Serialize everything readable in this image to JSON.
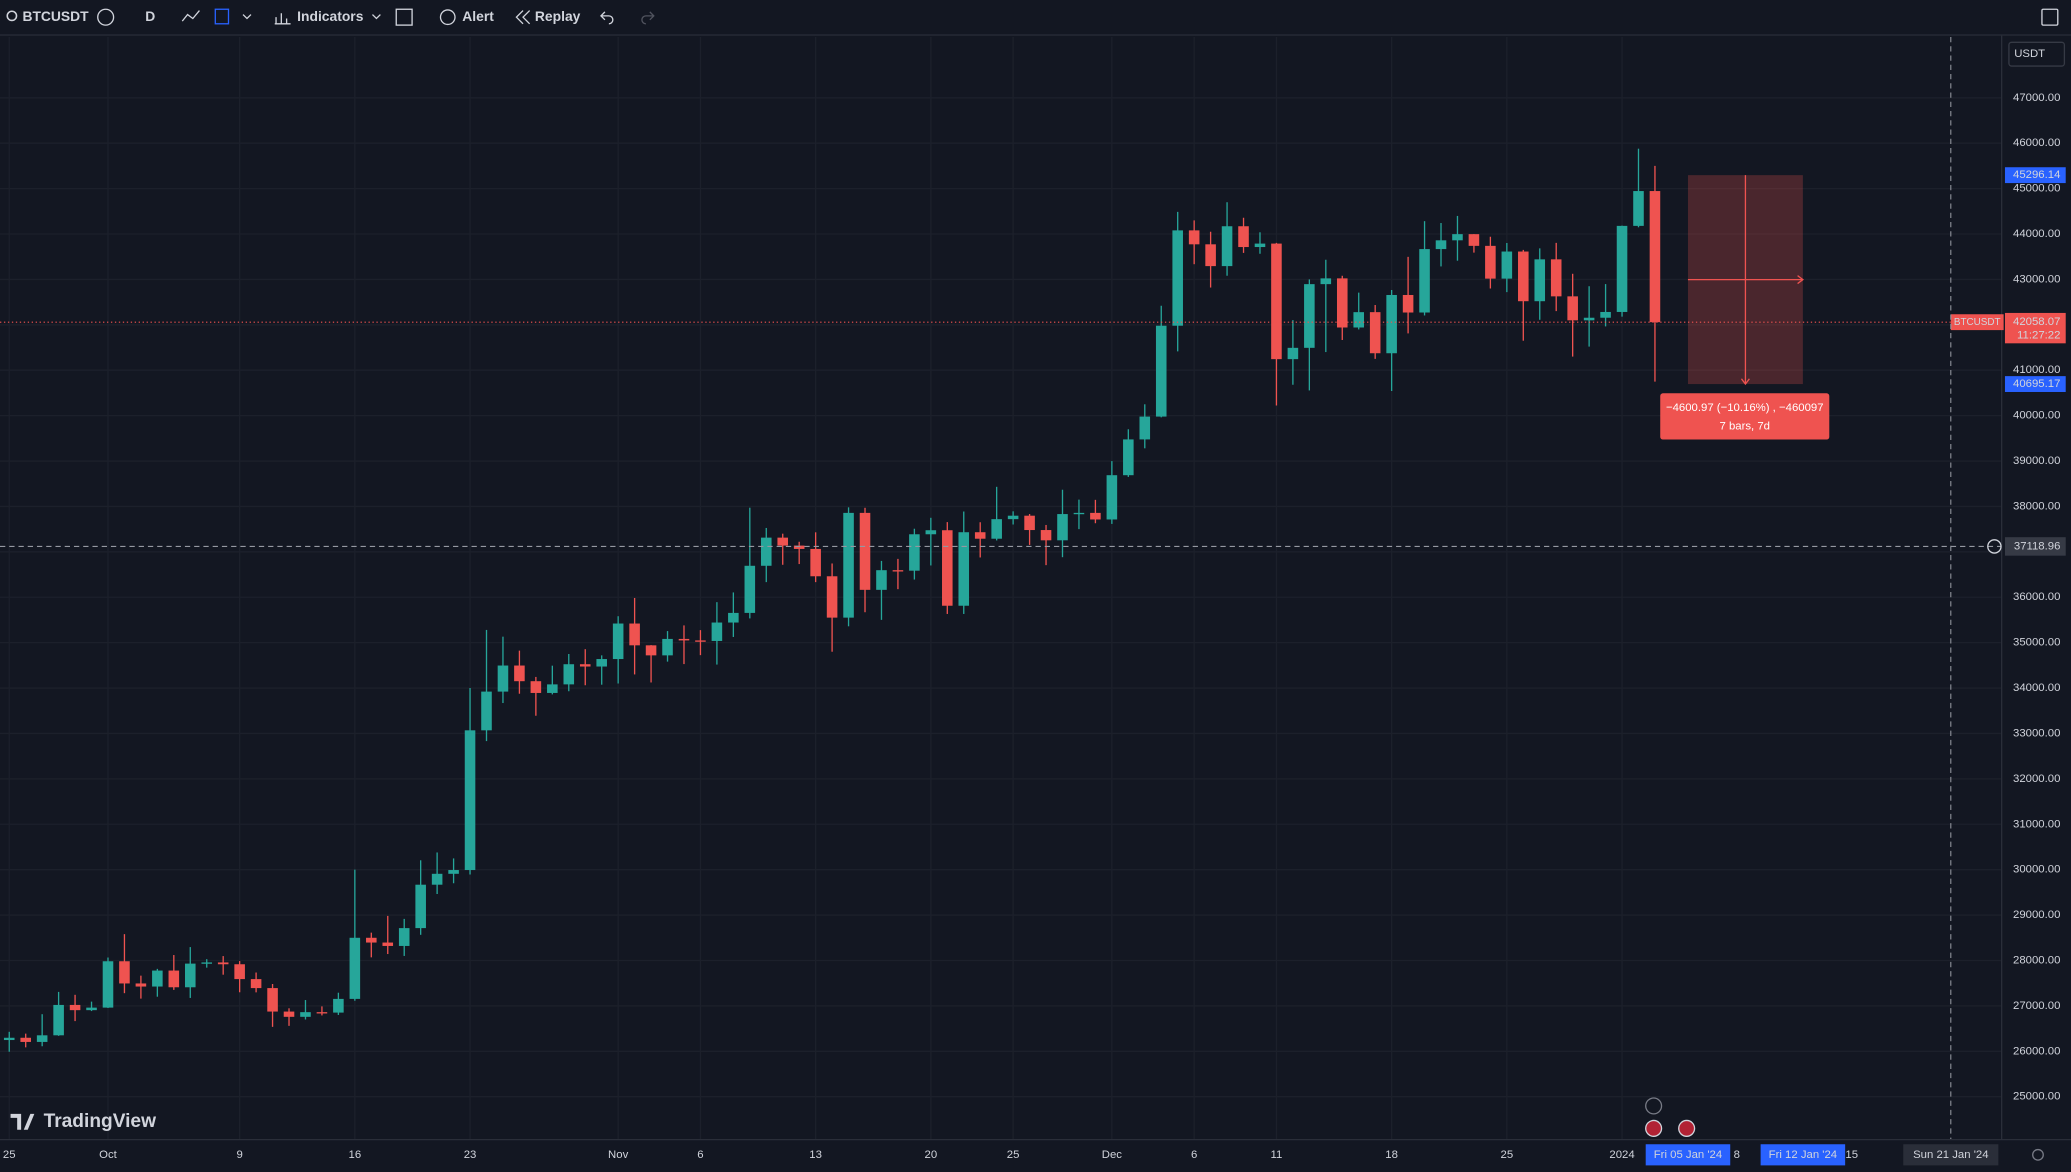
{
  "toolbar": {
    "symbol": "BTCUSDT",
    "interval": "D",
    "indicators": "Indicators",
    "alert": "Alert",
    "replay": "Replay"
  },
  "currency": "USDT",
  "logo": "TradingView",
  "x_axis_extra": [
    "Fri 05 Jan '24",
    "8",
    "Fri 12 Jan '24",
    "15",
    "Sun 21 Jan '24"
  ],
  "chart_data": {
    "type": "candlestick",
    "up_color": "#26a69a",
    "down_color": "#ef5350",
    "grid": true,
    "ylim": [
      24069,
      48339
    ],
    "yticks": [
      {
        "value": 25000,
        "label": "25000.00"
      },
      {
        "value": 26000,
        "label": "26000.00"
      },
      {
        "value": 27000,
        "label": "27000.00"
      },
      {
        "value": 28000,
        "label": "28000.00"
      },
      {
        "value": 29000,
        "label": "29000.00"
      },
      {
        "value": 30000,
        "label": "30000.00"
      },
      {
        "value": 31000,
        "label": "31000.00"
      },
      {
        "value": 32000,
        "label": "32000.00"
      },
      {
        "value": 33000,
        "label": "33000.00"
      },
      {
        "value": 34000,
        "label": "34000.00"
      },
      {
        "value": 35000,
        "label": "35000.00"
      },
      {
        "value": 36000,
        "label": "36000.00"
      },
      {
        "value": 37000,
        "label": "37000.00"
      },
      {
        "value": 38000,
        "label": "38000.00"
      },
      {
        "value": 39000,
        "label": "39000.00"
      },
      {
        "value": 40000,
        "label": "40000.00"
      },
      {
        "value": 41000,
        "label": "41000.00"
      },
      {
        "value": 42000,
        "label": "42000.00"
      },
      {
        "value": 43000,
        "label": "43000.00"
      },
      {
        "value": 44000,
        "label": "44000.00"
      },
      {
        "value": 45000,
        "label": "45000.00"
      },
      {
        "value": 46000,
        "label": "46000.00"
      },
      {
        "value": 47000,
        "label": "47000.00"
      }
    ],
    "categories": [
      "25",
      null,
      null,
      null,
      null,
      null,
      "Oct",
      null,
      null,
      null,
      null,
      null,
      null,
      null,
      "9",
      null,
      null,
      null,
      null,
      null,
      null,
      "16",
      null,
      null,
      null,
      null,
      null,
      null,
      "23",
      null,
      null,
      null,
      null,
      null,
      null,
      null,
      null,
      "Nov",
      null,
      null,
      null,
      null,
      "6",
      null,
      null,
      null,
      null,
      null,
      null,
      "13",
      null,
      null,
      null,
      null,
      null,
      null,
      "20",
      null,
      null,
      null,
      null,
      "25",
      null,
      null,
      null,
      null,
      null,
      "Dec",
      null,
      null,
      null,
      null,
      "6",
      null,
      null,
      null,
      null,
      "11",
      null,
      null,
      null,
      null,
      null,
      null,
      "18",
      null,
      null,
      null,
      null,
      null,
      null,
      "25",
      null,
      null,
      null,
      null,
      null,
      null,
      "2024",
      null,
      null
    ],
    "open": [
      26248,
      26298,
      26206,
      26352,
      27021,
      26906,
      26962,
      27983,
      27494,
      27426,
      27778,
      27410,
      27931,
      27957,
      27917,
      27590,
      27392,
      26875,
      26759,
      26862,
      26852,
      27154,
      28500,
      28395,
      28320,
      28713,
      29669,
      29909,
      29992,
      33069,
      33922,
      34496,
      34151,
      33892,
      34081,
      34525,
      34474,
      34639,
      35421,
      34941,
      34720,
      35082,
      35049,
      35037,
      35443,
      35655,
      36693,
      37313,
      37138,
      37064,
      36462,
      35551,
      37858,
      36163,
      36596,
      36585,
      37387,
      37476,
      35813,
      37432,
      37289,
      37720,
      37796,
      37480,
      37254,
      37832,
      37858,
      37713,
      38688,
      39476,
      39979,
      41980,
      44080,
      43773,
      43293,
      44171,
      43713,
      43789,
      41244,
      41493,
      42896,
      43023,
      41941,
      42279,
      41374,
      42657,
      42271,
      43668,
      43861,
      43997,
      43739,
      43017,
      43614,
      42520,
      43442,
      42627,
      42099,
      42156,
      42283,
      44179,
      44946
    ],
    "high": [
      26429,
      26389,
      26817,
      27308,
      27244,
      27094,
      28065,
      28580,
      27666,
      27815,
      28120,
      28295,
      28029,
      28097,
      27987,
      27735,
      27482,
      26947,
      27129,
      26989,
      27290,
      30000,
      28613,
      28982,
      28916,
      30207,
      30379,
      30248,
      34000,
      35280,
      35132,
      34824,
      34245,
      34493,
      34750,
      34856,
      34720,
      35582,
      35984,
      34946,
      35255,
      35380,
      35276,
      35892,
      36106,
      37972,
      37526,
      37400,
      37222,
      37430,
      36744,
      37980,
      37970,
      36800,
      36845,
      37509,
      37750,
      37655,
      37888,
      37652,
      38432,
      37893,
      37833,
      37592,
      38368,
      38150,
      38145,
      38999,
      39700,
      40250,
      42420,
      44488,
      44300,
      44050,
      44700,
      44358,
      44038,
      43804,
      42104,
      43000,
      43433,
      43080,
      42709,
      42436,
      42767,
      43497,
      44283,
      44242,
      44398,
      43998,
      43940,
      43802,
      43650,
      43684,
      43805,
      43124,
      42850,
      42897,
      44184,
      45879,
      45500
    ],
    "low": [
      25990,
      26087,
      26111,
      26340,
      26665,
      26886,
      26954,
      27280,
      27160,
      27202,
      27352,
      27175,
      27842,
      27687,
      27300,
      27298,
      26538,
      26560,
      26700,
      26790,
      26800,
      27112,
      28069,
      28142,
      28100,
      28565,
      29464,
      29701,
      29893,
      32832,
      33670,
      33875,
      33390,
      33860,
      33930,
      34062,
      34074,
      34100,
      34300,
      34123,
      34582,
      34528,
      34725,
      34517,
      35125,
      35534,
      36333,
      36715,
      36731,
      36333,
      34800,
      35360,
      35670,
      35502,
      36178,
      36390,
      36700,
      35632,
      35632,
      36876,
      37251,
      37602,
      37152,
      36707,
      36882,
      37500,
      37630,
      37615,
      38650,
      39280,
      39962,
      41415,
      43335,
      42821,
      43081,
      43584,
      43565,
      40222,
      40680,
      40555,
      41400,
      41666,
      41898,
      41250,
      40542,
      41811,
      42206,
      43286,
      43412,
      43590,
      42800,
      42720,
      41650,
      42111,
      42302,
      41300,
      41520,
      41965,
      42180,
      44148,
      40750
    ],
    "close": [
      26298,
      26206,
      26352,
      27021,
      26906,
      26962,
      27983,
      27494,
      27426,
      27778,
      27410,
      27931,
      27957,
      27917,
      27590,
      27392,
      26875,
      26759,
      26862,
      26852,
      27154,
      28500,
      28395,
      28320,
      28713,
      29669,
      29909,
      29992,
      33069,
      33922,
      34496,
      34151,
      33892,
      34081,
      34525,
      34474,
      34639,
      35421,
      34941,
      34720,
      35082,
      35049,
      35037,
      35443,
      35655,
      36693,
      37313,
      37138,
      37064,
      36462,
      35551,
      37858,
      36163,
      36596,
      36585,
      37387,
      37476,
      35813,
      37432,
      37289,
      37720,
      37796,
      37480,
      37254,
      37832,
      37858,
      37713,
      38688,
      39476,
      39979,
      41980,
      44080,
      43773,
      43293,
      44171,
      43713,
      43789,
      41244,
      41493,
      42896,
      43023,
      41941,
      42279,
      41374,
      42657,
      42271,
      43668,
      43861,
      43997,
      43739,
      43017,
      43614,
      42520,
      43442,
      42627,
      42099,
      42156,
      42283,
      44179,
      44946,
      42058.07
    ],
    "price_tag": "BTCUSDT",
    "countdown": "11:27:22",
    "crosshair_price": 37118.96,
    "measure": {
      "from": 45296.14,
      "to": 40695.17,
      "change_label": "−4600.97 (−10.16%) , −460097",
      "bars_label": "7 bars, 7d"
    }
  }
}
